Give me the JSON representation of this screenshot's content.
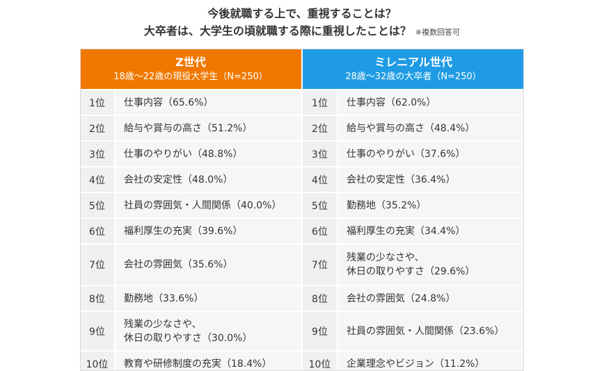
{
  "title_line1": "今後就職する上で、重視することは？",
  "title_line2": "大卒者は、大学生の頃就職する際に重視したことは？",
  "note": "※複数回答可",
  "colors": {
    "gen_z": "#f07800",
    "millennial": "#1e9be4"
  },
  "columns": [
    {
      "title": "Z世代",
      "subtitle": "18歳〜22歳の現役大学生（N=250）"
    },
    {
      "title": "ミレニアル世代",
      "subtitle": "28歳〜32歳の大卒者（N=250）"
    }
  ],
  "rows": [
    {
      "rank": "1位",
      "left": "仕事内容（65.6%）",
      "right": "仕事内容（62.0%）"
    },
    {
      "rank": "2位",
      "left": "給与や賞与の高さ（51.2%）",
      "right": "給与や賞与の高さ（48.4%）"
    },
    {
      "rank": "3位",
      "left": "仕事のやりがい（48.8%）",
      "right": "仕事のやりがい（37.6%）"
    },
    {
      "rank": "4位",
      "left": "会社の安定性（48.0%）",
      "right": "会社の安定性（36.4%）"
    },
    {
      "rank": "5位",
      "left": "社員の雰囲気・人間関係（40.0%）",
      "right": "勤務地（35.2%）"
    },
    {
      "rank": "6位",
      "left": "福利厚生の充実（39.6%）",
      "right": "福利厚生の充実（34.4%）"
    },
    {
      "rank": "7位",
      "left": "会社の雰囲気（35.6%）",
      "right": "残業の少なさや、\n休日の取りやすさ（29.6%）"
    },
    {
      "rank": "8位",
      "left": "勤務地（33.6%）",
      "right": "会社の雰囲気（24.8%）"
    },
    {
      "rank": "9位",
      "left": "残業の少なさや、\n休日の取りやすさ（30.0%）",
      "right": "社員の雰囲気・人間関係（23.6%）"
    },
    {
      "rank": "10位",
      "left": "教育や研修制度の充実（18.4%）",
      "right": "企業理念やビジョン（11.2%）"
    }
  ],
  "chart_data": {
    "type": "table",
    "title": "今後就職する上で、重視することは？ / 大卒者は、大学生の頃就職する際に重視したことは？",
    "columns": [
      "Z世代 18歳〜22歳の現役大学生（N=250）",
      "ミレニアル世代 28歳〜32歳の大卒者（N=250）"
    ],
    "series": [
      {
        "name": "Z世代",
        "items": [
          "仕事内容",
          "給与や賞与の高さ",
          "仕事のやりがい",
          "会社の安定性",
          "社員の雰囲気・人間関係",
          "福利厚生の充実",
          "会社の雰囲気",
          "勤務地",
          "残業の少なさや、休日の取りやすさ",
          "教育や研修制度の充実"
        ],
        "values": [
          65.6,
          51.2,
          48.8,
          48.0,
          40.0,
          39.6,
          35.6,
          33.6,
          30.0,
          18.4
        ]
      },
      {
        "name": "ミレニアル世代",
        "items": [
          "仕事内容",
          "給与や賞与の高さ",
          "仕事のやりがい",
          "会社の安定性",
          "勤務地",
          "福利厚生の充実",
          "残業の少なさや、休日の取りやすさ",
          "会社の雰囲気",
          "社員の雰囲気・人間関係",
          "企業理念やビジョン"
        ],
        "values": [
          62.0,
          48.4,
          37.6,
          36.4,
          35.2,
          34.4,
          29.6,
          24.8,
          23.6,
          11.2
        ]
      }
    ]
  }
}
